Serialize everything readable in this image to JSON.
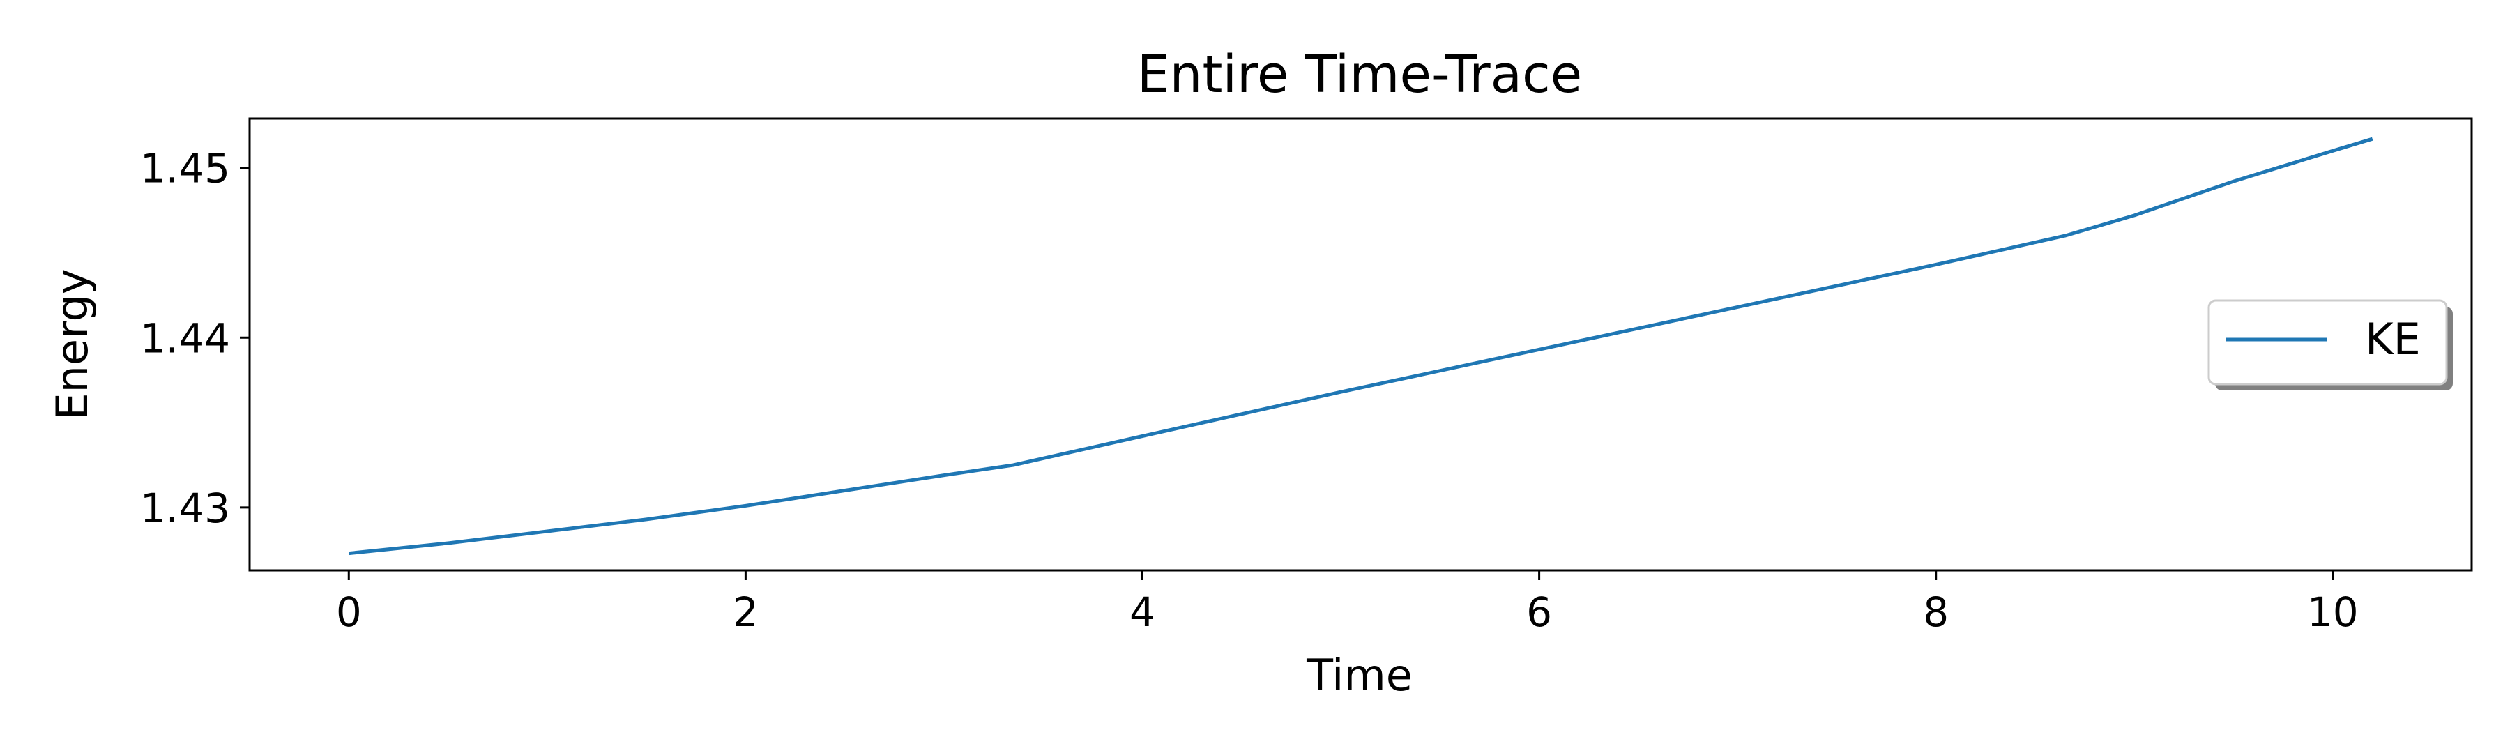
{
  "chart_data": {
    "type": "line",
    "title": "Entire Time-Trace",
    "xlabel": "Time",
    "ylabel": "Energy",
    "xlim": [
      -0.5,
      10.7
    ],
    "ylim": [
      1.4263,
      1.4529
    ],
    "xticks": [
      0,
      2,
      4,
      6,
      8,
      10
    ],
    "xtick_labels": [
      "0",
      "2",
      "4",
      "6",
      "8",
      "10"
    ],
    "yticks": [
      1.43,
      1.44,
      1.45
    ],
    "ytick_labels": [
      "1.43",
      "1.44",
      "1.45"
    ],
    "grid": false,
    "legend_position": "center-right",
    "series": [
      {
        "name": "KE",
        "color": "#1f77b4",
        "x": [
          0,
          0.5,
          1,
          1.5,
          2,
          2.5,
          3,
          3.35,
          4,
          5,
          6,
          7,
          8,
          8.65,
          9,
          9.5,
          10,
          10.2
        ],
        "y": [
          1.4273,
          1.4279,
          1.4286,
          1.4293,
          1.4301,
          1.431,
          1.4319,
          1.4325,
          1.4342,
          1.4368,
          1.4393,
          1.4418,
          1.4443,
          1.446,
          1.4472,
          1.4492,
          1.451,
          1.4517
        ]
      }
    ]
  }
}
